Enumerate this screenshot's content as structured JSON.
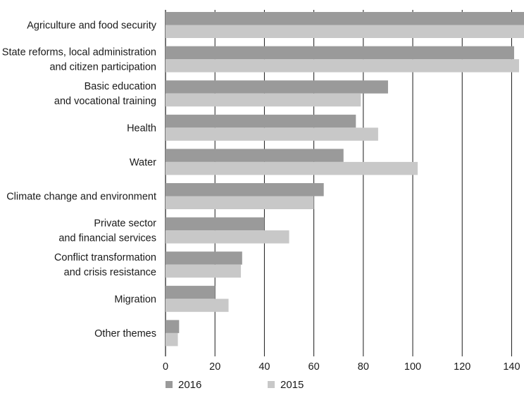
{
  "chart_data": {
    "type": "bar",
    "orientation": "horizontal",
    "title": "",
    "xlabel": "",
    "ylabel": "",
    "categories": [
      [
        "Agriculture and food security"
      ],
      [
        "State reforms, local administration",
        "and citizen participation"
      ],
      [
        "Basic education",
        "and vocational training"
      ],
      [
        "Health"
      ],
      [
        "Water"
      ],
      [
        "Climate change and environment"
      ],
      [
        "Private sector",
        "and financial services"
      ],
      [
        "Conflict transformation",
        "and crisis resistance"
      ],
      [
        "Migration"
      ],
      [
        "Other themes"
      ]
    ],
    "series": [
      {
        "name": "2016",
        "color": "#9a9a9a",
        "values": [
          145,
          141,
          90,
          77,
          72,
          64,
          40,
          31,
          20,
          5.5
        ]
      },
      {
        "name": "2015",
        "color": "#c8c8c8",
        "values": [
          146,
          143,
          79,
          86,
          102,
          60,
          50,
          30.5,
          25.5,
          5
        ]
      }
    ],
    "xlim": [
      0,
      145
    ],
    "xticks": [
      0,
      20,
      40,
      60,
      80,
      100,
      120,
      140
    ],
    "grid": "vertical",
    "legend": "bottom-left"
  }
}
